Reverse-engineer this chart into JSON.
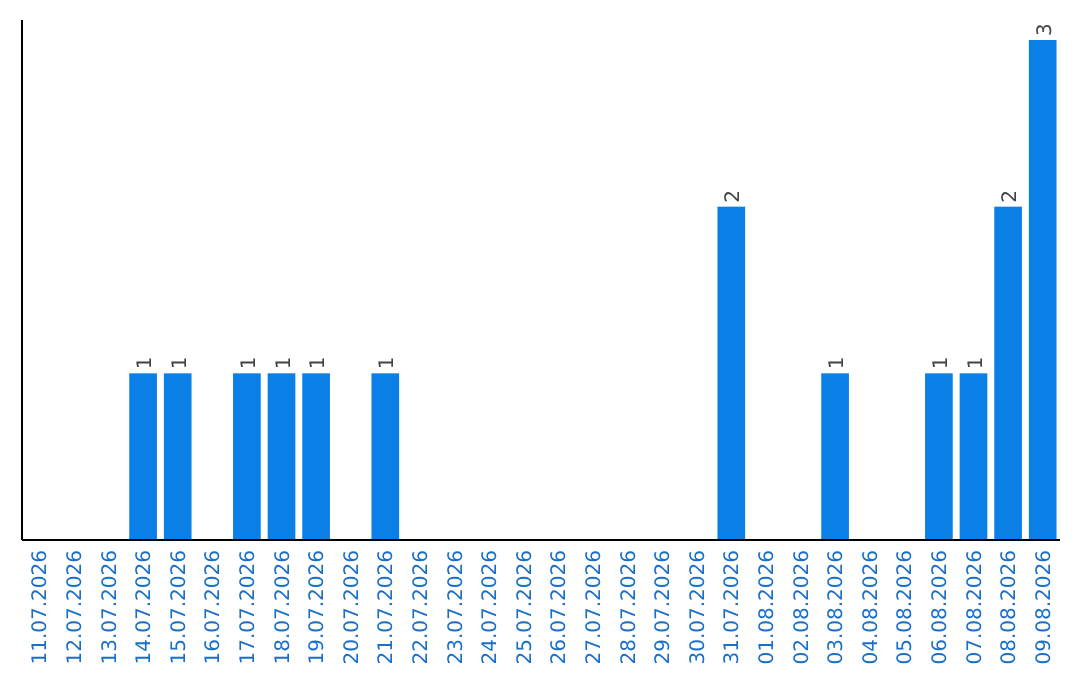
{
  "chart_data": {
    "type": "bar",
    "categories": [
      "11.07.2026",
      "12.07.2026",
      "13.07.2026",
      "14.07.2026",
      "15.07.2026",
      "16.07.2026",
      "17.07.2026",
      "18.07.2026",
      "19.07.2026",
      "20.07.2026",
      "21.07.2026",
      "22.07.2026",
      "23.07.2026",
      "24.07.2026",
      "25.07.2026",
      "26.07.2026",
      "27.07.2026",
      "28.07.2026",
      "29.07.2026",
      "30.07.2026",
      "31.07.2026",
      "01.08.2026",
      "02.08.2026",
      "03.08.2026",
      "04.08.2026",
      "05.08.2026",
      "06.08.2026",
      "07.08.2026",
      "08.08.2026",
      "09.08.2026"
    ],
    "values": [
      0,
      0,
      0,
      1,
      1,
      0,
      1,
      1,
      1,
      0,
      1,
      0,
      0,
      0,
      0,
      0,
      0,
      0,
      0,
      0,
      2,
      0,
      0,
      1,
      0,
      0,
      1,
      1,
      2,
      3
    ],
    "value_labels": [
      null,
      null,
      null,
      "1",
      "1",
      null,
      "1",
      "1",
      "1",
      null,
      "1",
      null,
      null,
      null,
      null,
      null,
      null,
      null,
      null,
      null,
      "2",
      null,
      null,
      "1",
      null,
      null,
      "1",
      "1",
      "2",
      "3"
    ],
    "color": "#0a7fe6"
  }
}
